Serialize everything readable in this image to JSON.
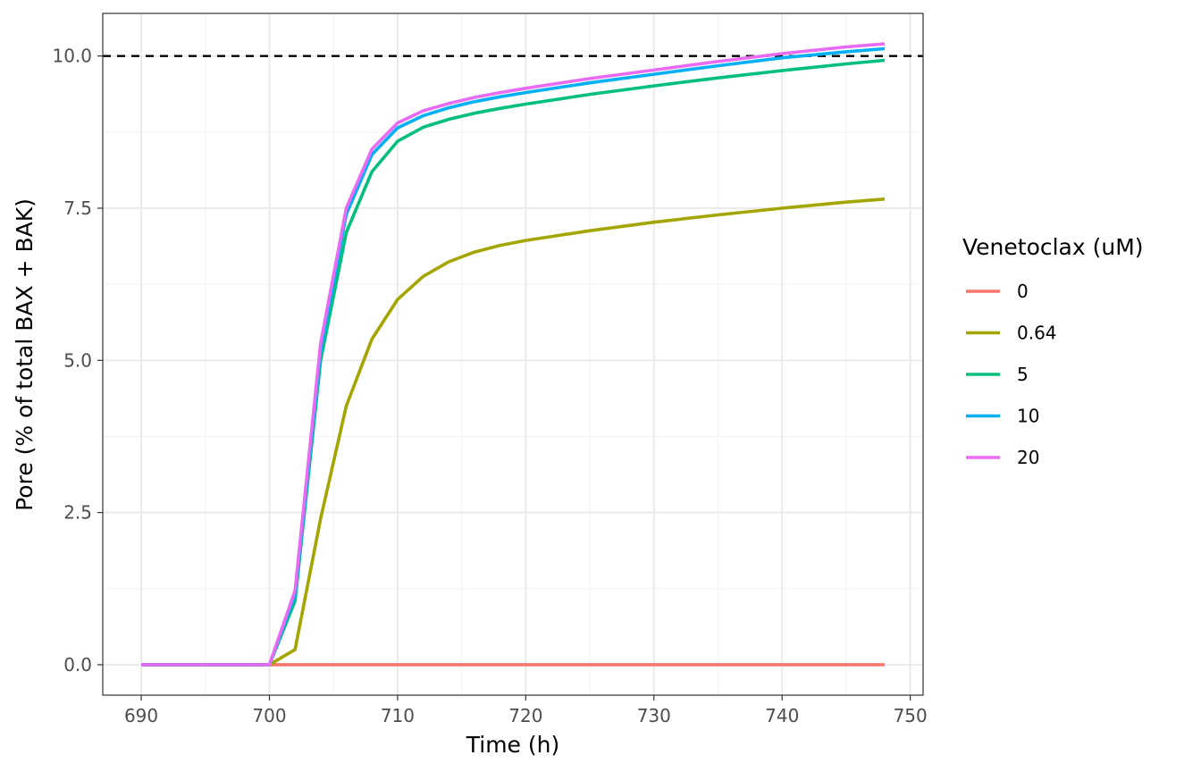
{
  "chart_data": {
    "type": "line",
    "xlabel": "Time (h)",
    "ylabel": "Pore (% of total BAX + BAK)",
    "xlim": [
      687,
      751
    ],
    "ylim": [
      -0.5,
      10.7
    ],
    "x_ticks": [
      690,
      700,
      710,
      720,
      730,
      740,
      750
    ],
    "x_tick_labels": [
      "690",
      "700",
      "710",
      "720",
      "730",
      "740",
      "750"
    ],
    "y_ticks": [
      0,
      2.5,
      5,
      7.5,
      10
    ],
    "y_tick_labels": [
      "0.0",
      "2.5",
      "5.0",
      "7.5",
      "10.0"
    ],
    "grid": true,
    "reference_line": {
      "y": 10,
      "style": "dashed",
      "color": "#000000"
    },
    "legend": {
      "title": "Venetoclax (uM)",
      "position": "right"
    },
    "series": [
      {
        "name": "0",
        "color": "#F8766D",
        "x": [
          690,
          700,
          748
        ],
        "y": [
          0,
          0,
          0
        ]
      },
      {
        "name": "0.64",
        "color": "#A3A500",
        "x": [
          690,
          700,
          702,
          704,
          706,
          708,
          710,
          712,
          714,
          716,
          718,
          720,
          725,
          730,
          735,
          740,
          745,
          748
        ],
        "y": [
          0,
          0,
          0.25,
          2.4,
          4.25,
          5.35,
          6.0,
          6.38,
          6.62,
          6.78,
          6.89,
          6.97,
          7.13,
          7.27,
          7.39,
          7.5,
          7.6,
          7.65
        ]
      },
      {
        "name": "5",
        "color": "#00BF7D",
        "x": [
          690,
          700,
          702,
          704,
          706,
          708,
          710,
          712,
          714,
          716,
          718,
          720,
          725,
          730,
          735,
          740,
          745,
          748
        ],
        "y": [
          0,
          0,
          1.05,
          5.0,
          7.1,
          8.1,
          8.6,
          8.83,
          8.96,
          9.06,
          9.14,
          9.21,
          9.37,
          9.51,
          9.64,
          9.76,
          9.87,
          9.93
        ]
      },
      {
        "name": "10",
        "color": "#00B0F6",
        "x": [
          690,
          700,
          702,
          704,
          706,
          708,
          710,
          712,
          714,
          716,
          718,
          720,
          725,
          730,
          735,
          740,
          745,
          748
        ],
        "y": [
          0,
          0,
          1.15,
          5.15,
          7.4,
          8.38,
          8.82,
          9.02,
          9.15,
          9.25,
          9.33,
          9.4,
          9.56,
          9.7,
          9.84,
          9.97,
          10.07,
          10.12
        ]
      },
      {
        "name": "20",
        "color": "#E76BF3",
        "x": [
          690,
          700,
          702,
          704,
          706,
          708,
          710,
          712,
          714,
          716,
          718,
          720,
          725,
          730,
          735,
          740,
          745,
          748
        ],
        "y": [
          0,
          0,
          1.22,
          5.28,
          7.5,
          8.47,
          8.9,
          9.1,
          9.22,
          9.32,
          9.4,
          9.47,
          9.63,
          9.77,
          9.91,
          10.04,
          10.15,
          10.2
        ]
      }
    ]
  }
}
